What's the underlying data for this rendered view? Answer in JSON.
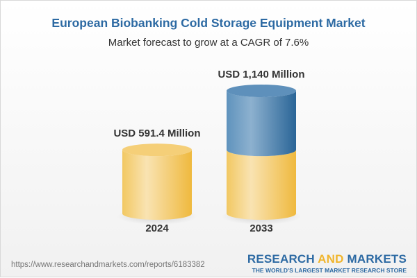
{
  "title": "European Biobanking Cold Storage Equipment Market",
  "subtitle": "Market forecast to grow at a CAGR of 7.6%",
  "chart_data": {
    "type": "bar",
    "style": "3d-cylinder",
    "categories": [
      "2024",
      "2033"
    ],
    "values": [
      591.4,
      1140
    ],
    "data_labels": [
      "USD 591.4 Million",
      "USD 1,140 Million"
    ],
    "unit": "USD Million",
    "colors": {
      "base": "#f2c45a",
      "growth": "#3d77aa"
    },
    "grid": false
  },
  "footer": {
    "url": "https://www.researchandmarkets.com/reports/6183382",
    "logo_part1": "RESEARCH ",
    "logo_part2": "AND",
    "logo_part3": " MARKETS",
    "logo_tagline": "THE WORLD'S LARGEST MARKET RESEARCH STORE"
  }
}
